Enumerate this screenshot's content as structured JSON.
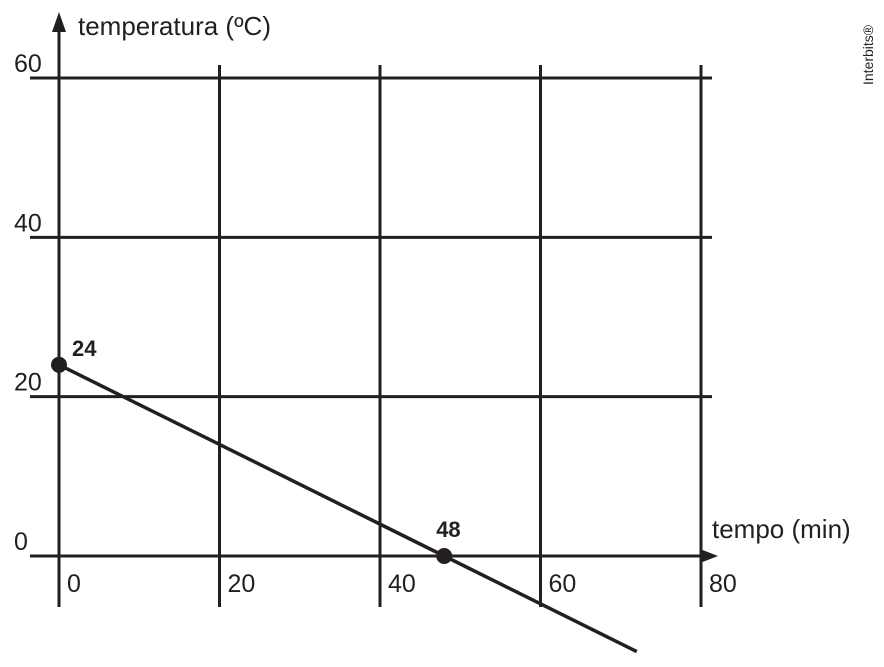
{
  "chart_data": {
    "type": "line",
    "y_label": "temperatura (ºC)",
    "x_label": "tempo (min)",
    "watermark": "Interbits®",
    "series": [
      {
        "color": "#231f20",
        "x": [
          0,
          48,
          72
        ],
        "values": [
          24,
          0,
          -12
        ],
        "markers": [
          true,
          true,
          false
        ]
      }
    ],
    "annotations": [
      {
        "text": "24",
        "x": 0,
        "y": 24
      },
      {
        "text": "48",
        "x": 48,
        "y": 0
      }
    ],
    "xlim": [
      0,
      80
    ],
    "ylim": [
      0,
      60
    ],
    "xticks": [
      0,
      20,
      40,
      60,
      80
    ],
    "yticks": [
      0,
      20,
      40,
      60
    ],
    "grid": true
  }
}
